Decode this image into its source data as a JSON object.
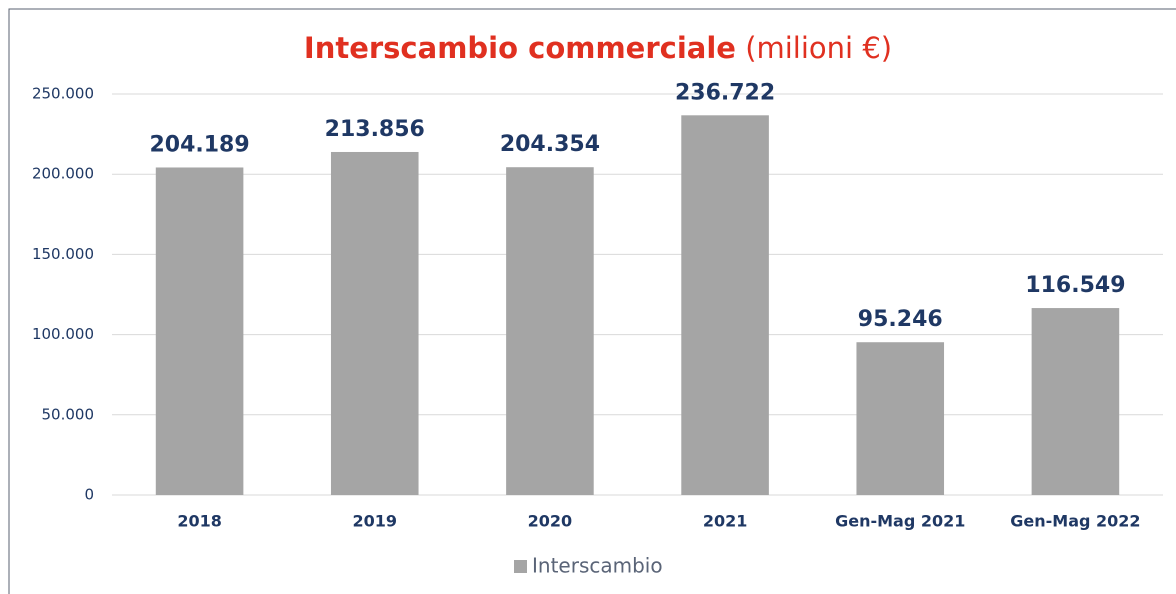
{
  "chart_data": {
    "type": "bar",
    "title": "Interscambio commerciale",
    "title_unit": "(milioni €)",
    "categories": [
      "2018",
      "2019",
      "2020",
      "2021",
      "Gen-Mag 2021",
      "Gen-Mag 2022"
    ],
    "series": [
      {
        "name": "Interscambio",
        "color": "#a5a5a5",
        "values": [
          204189,
          213856,
          204354,
          236722,
          95246,
          116549
        ],
        "value_labels": [
          "204.189",
          "213.856",
          "204.354",
          "236.722",
          "95.246",
          "116.549"
        ]
      }
    ],
    "ylim": [
      0,
      250000
    ],
    "yticks": [
      0,
      {
        "value": 50000,
        "label": "50.000"
      },
      {
        "value": 100000,
        "label": "100.000"
      },
      {
        "value": 150000,
        "label": "150.000"
      },
      {
        "value": 200000,
        "label": "200.000"
      },
      {
        "value": 250000,
        "label": "250.000"
      }
    ],
    "grid": true,
    "legend": "bottom"
  }
}
